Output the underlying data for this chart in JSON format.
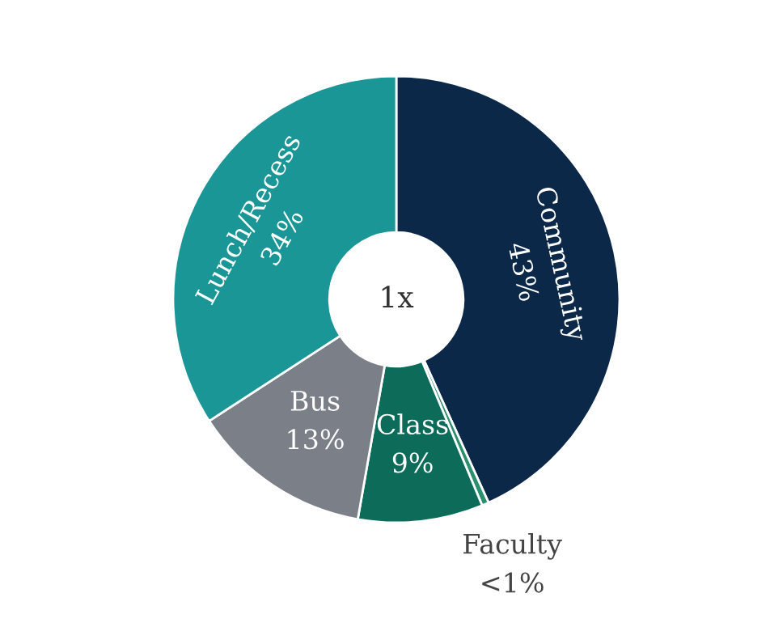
{
  "chart_data": {
    "type": "donut",
    "categories": [
      "Community",
      "Faculty",
      "Class",
      "Bus",
      "Lunch/Recess"
    ],
    "values": [
      43,
      0.5,
      9,
      13,
      34
    ],
    "value_labels": [
      "43%",
      "<1%",
      "9%",
      "13%",
      "34%"
    ],
    "colors": [
      "#0c2849",
      "#2a8f6e",
      "#0d6b59",
      "#7b7f88",
      "#1b9696"
    ],
    "annotations": [
      "1x"
    ],
    "legend": false
  }
}
